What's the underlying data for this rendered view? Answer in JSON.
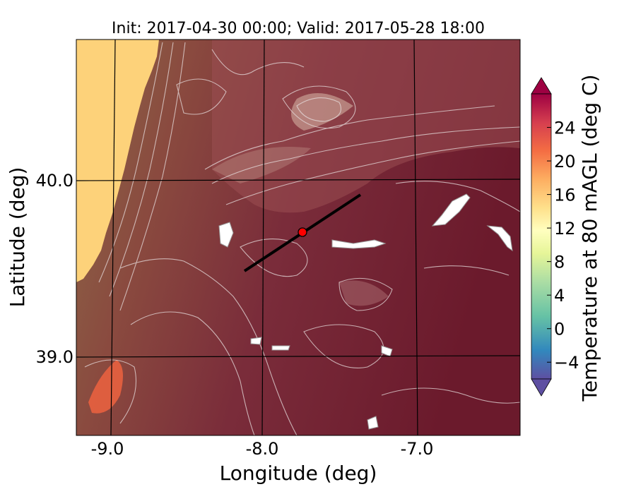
{
  "title": "Init: 2017-04-30 00:00; Valid: 2017-05-28 18:00",
  "xlabel": "Longitude (deg)",
  "ylabel": "Latitude (deg)",
  "colorbar_label": "Temperature at 80 mAGL (deg C)",
  "x_ticks": [
    "-9.0",
    "-8.0",
    "-7.0"
  ],
  "y_ticks": [
    "40.0",
    "39.0"
  ],
  "colorbar_ticks": [
    "24",
    "20",
    "16",
    "12",
    "8",
    "4",
    "0",
    "−4"
  ],
  "colorbar_tick_values": [
    24,
    20,
    16,
    12,
    8,
    4,
    0,
    -4
  ],
  "colorbar_range": [
    -6,
    28
  ],
  "colorbar_colors": [
    "#5e4fa2",
    "#3288bd",
    "#66c2a5",
    "#abdda4",
    "#e6f598",
    "#ffffbf",
    "#fee08b",
    "#fdae61",
    "#f46d43",
    "#d53e4f",
    "#9e0142"
  ],
  "land_color": "#6b1a2c",
  "ocean_color": "#fdd27a",
  "transect": {
    "start": {
      "lon": -8.1,
      "lat": 39.5
    },
    "end": {
      "lon": -7.35,
      "lat": 39.92
    }
  },
  "marker": {
    "lon": -7.73,
    "lat": 39.7,
    "color": "#ff0000"
  }
}
